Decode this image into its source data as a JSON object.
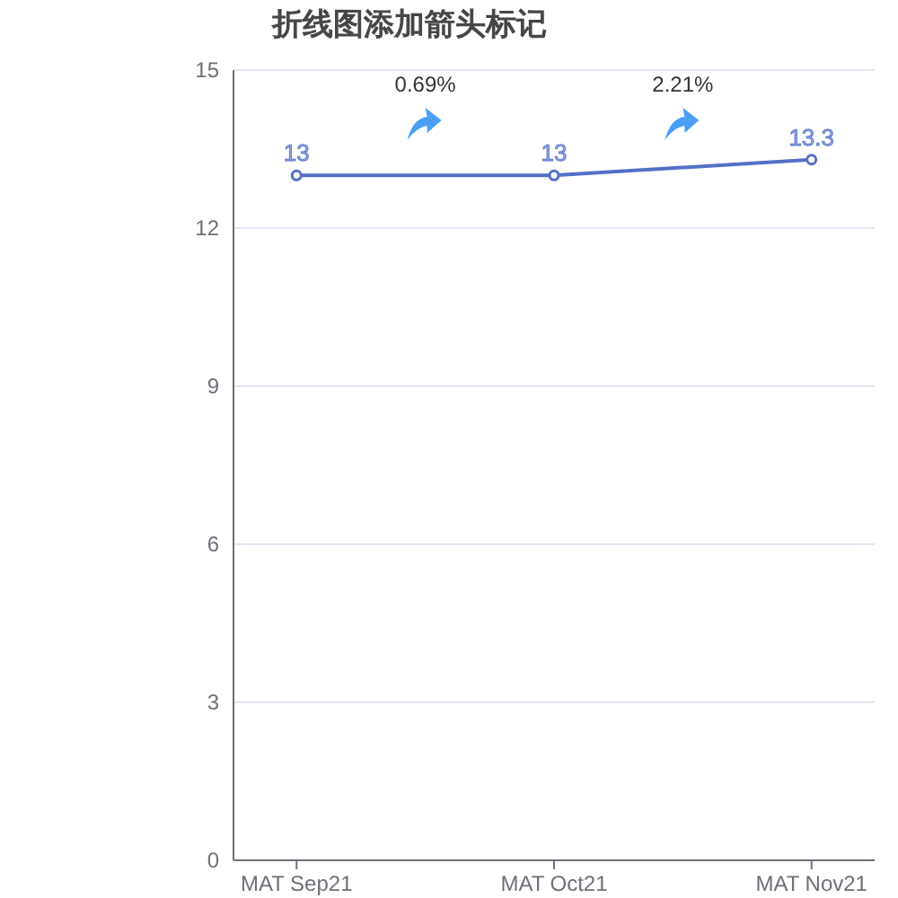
{
  "chart_data": {
    "type": "line",
    "title": "折线图添加箭头标记",
    "categories": [
      "MAT Sep21",
      "MAT Oct21",
      "MAT Nov21"
    ],
    "series": [
      {
        "color": "#5470c6",
        "values": [
          13,
          13,
          13.3
        ]
      }
    ],
    "ylim": [
      0,
      15
    ],
    "yticks": [
      0,
      3,
      6,
      9,
      12,
      15
    ],
    "grid": "y",
    "marker": "circle",
    "line_style": "solid",
    "data_labels": true,
    "annotations": [
      "0.69%",
      "2.21%"
    ]
  }
}
